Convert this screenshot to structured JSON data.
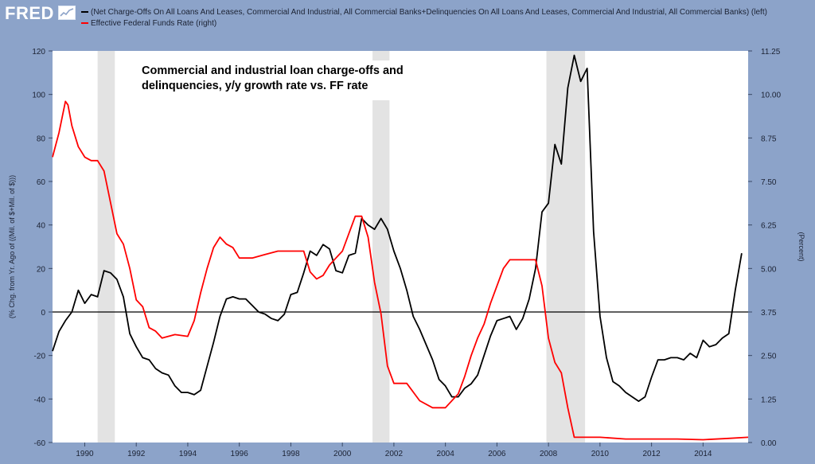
{
  "header": {
    "logo_text": "FRED",
    "logo_badge": "chart-icon",
    "legend": [
      {
        "label": "(Net Charge-Offs On All Loans And Leases, Commercial And Industrial, All Commercial Banks+Delinquencies On All Loans And Leases, Commercial And Industrial, All Commercial Banks) (left)",
        "color": "#000000"
      },
      {
        "label": "Effective Federal Funds Rate (right)",
        "color": "#ff0000"
      }
    ]
  },
  "annotation": {
    "line1": "Commercial and industrial loan charge-offs and",
    "line2": "delinquencies, y/y growth rate vs. FF rate"
  },
  "colors": {
    "background": "#8ca3c9",
    "plot_area": "#ffffff",
    "recession_band": "#e3e3e3",
    "series_left": "#000000",
    "series_right": "#ff0000"
  },
  "chart_data": {
    "type": "line",
    "title": "",
    "ylabel_left": "(% Chg. from Yr. Ago of ((Mil. of $+Mil. of $)))",
    "ylabel_right": "(Percent)",
    "xlim": [
      1988.75,
      2015.75
    ],
    "ylim_left": [
      -60,
      120
    ],
    "ylim_right": [
      0,
      11.25
    ],
    "xticks": [
      1990,
      1992,
      1994,
      1996,
      1998,
      2000,
      2002,
      2004,
      2006,
      2008,
      2010,
      2012,
      2014
    ],
    "xtick_labels": [
      "1990",
      "1992",
      "1994",
      "1996",
      "1998",
      "2000",
      "2002",
      "2004",
      "2006",
      "2008",
      "2010",
      "2012",
      "2014"
    ],
    "yticks_left": [
      -60,
      -40,
      -20,
      0,
      20,
      40,
      60,
      80,
      100,
      120
    ],
    "ytick_labels_left": [
      "-60",
      "-40",
      "-20",
      "0",
      "20",
      "40",
      "60",
      "80",
      "100",
      "120"
    ],
    "yticks_right": [
      0,
      1.25,
      2.5,
      3.75,
      5,
      6.25,
      7.5,
      8.75,
      10,
      11.25
    ],
    "ytick_labels_right": [
      "0.00",
      "1.25",
      "2.50",
      "3.75",
      "5.00",
      "6.25",
      "7.50",
      "8.75",
      "10.00",
      "11.25"
    ],
    "zero_line_left": 0,
    "recessions": [
      [
        1990.5,
        1991.17
      ],
      [
        2001.17,
        2001.83
      ],
      [
        2007.92,
        2009.42
      ]
    ],
    "series": [
      {
        "name": "(Net Charge-Offs On All Loans And Leases, Commercial And Industrial, All Commercial Banks+Delinquencies On All Loans And Leases, Commercial And Industrial, All Commercial Banks) (left)",
        "axis": "left",
        "x": [
          1988.75,
          1989.0,
          1989.25,
          1989.5,
          1989.75,
          1990.0,
          1990.25,
          1990.5,
          1990.75,
          1991.0,
          1991.25,
          1991.5,
          1991.75,
          1992.0,
          1992.25,
          1992.5,
          1992.75,
          1993.0,
          1993.25,
          1993.5,
          1993.75,
          1994.0,
          1994.25,
          1994.5,
          1994.75,
          1995.0,
          1995.25,
          1995.5,
          1995.75,
          1996.0,
          1996.25,
          1996.5,
          1996.75,
          1997.0,
          1997.25,
          1997.5,
          1997.75,
          1998.0,
          1998.25,
          1998.5,
          1998.75,
          1999.0,
          1999.25,
          1999.5,
          1999.75,
          2000.0,
          2000.25,
          2000.5,
          2000.75,
          2001.0,
          2001.25,
          2001.5,
          2001.75,
          2002.0,
          2002.25,
          2002.5,
          2002.75,
          2003.0,
          2003.25,
          2003.5,
          2003.75,
          2004.0,
          2004.25,
          2004.5,
          2004.75,
          2005.0,
          2005.25,
          2005.5,
          2005.75,
          2006.0,
          2006.25,
          2006.5,
          2006.75,
          2007.0,
          2007.25,
          2007.5,
          2007.75,
          2008.0,
          2008.25,
          2008.5,
          2008.75,
          2009.0,
          2009.25,
          2009.5,
          2009.75,
          2010.0,
          2010.25,
          2010.5,
          2010.75,
          2011.0,
          2011.25,
          2011.5,
          2011.75,
          2012.0,
          2012.25,
          2012.5,
          2012.75,
          2013.0,
          2013.25,
          2013.5,
          2013.75,
          2014.0,
          2014.25,
          2014.5,
          2014.75,
          2015.0,
          2015.25,
          2015.5
        ],
        "y": [
          -18,
          -9,
          -4,
          0,
          10,
          4,
          8,
          7,
          19,
          18,
          15,
          7,
          -10,
          -16,
          -21,
          -22,
          -26,
          -28,
          -29,
          -34,
          -37,
          -37,
          -38,
          -36,
          -25,
          -14,
          -2,
          6,
          7,
          6,
          6,
          3,
          0,
          -1,
          -3,
          -4,
          -1,
          8,
          9,
          18,
          28,
          26,
          31,
          29,
          19,
          18,
          26,
          27,
          43,
          40,
          38,
          43,
          38,
          28,
          20,
          10,
          -2,
          -8,
          -15,
          -22,
          -31,
          -34,
          -39,
          -39,
          -35,
          -33,
          -29,
          -20,
          -11,
          -4,
          -3,
          -2,
          -8,
          -3,
          6,
          20,
          46,
          50,
          77,
          68,
          103,
          118,
          106,
          112,
          37,
          -2,
          -21,
          -32,
          -34,
          -37,
          -39,
          -41,
          -39,
          -30,
          -22,
          -22,
          -21,
          -21,
          -22,
          -19,
          -21,
          -13,
          -16,
          -15,
          -12,
          -10,
          10,
          27
        ]
      },
      {
        "name": "Effective Federal Funds Rate (right)",
        "axis": "right",
        "x": [
          1988.75,
          1989.0,
          1989.25,
          1989.35,
          1989.5,
          1989.75,
          1990.0,
          1990.25,
          1990.5,
          1990.75,
          1991.0,
          1991.25,
          1991.5,
          1991.75,
          1992.0,
          1992.25,
          1992.5,
          1992.75,
          1993.0,
          1993.5,
          1994.0,
          1994.25,
          1994.5,
          1994.75,
          1995.0,
          1995.25,
          1995.5,
          1995.75,
          1996.0,
          1996.5,
          1997.0,
          1997.5,
          1998.0,
          1998.5,
          1998.75,
          1999.0,
          1999.25,
          1999.5,
          1999.75,
          2000.0,
          2000.25,
          2000.5,
          2000.75,
          2001.0,
          2001.25,
          2001.5,
          2001.75,
          2002.0,
          2002.5,
          2003.0,
          2003.5,
          2004.0,
          2004.5,
          2004.75,
          2005.0,
          2005.25,
          2005.5,
          2005.75,
          2006.0,
          2006.25,
          2006.5,
          2006.75,
          2007.0,
          2007.5,
          2007.75,
          2008.0,
          2008.25,
          2008.5,
          2008.75,
          2009.0,
          2009.5,
          2010.0,
          2011.0,
          2012.0,
          2013.0,
          2014.0,
          2015.0,
          2015.75
        ],
        "y": [
          8.2,
          8.9,
          9.8,
          9.7,
          9.1,
          8.5,
          8.2,
          8.1,
          8.1,
          7.8,
          6.9,
          6.0,
          5.7,
          5.0,
          4.1,
          3.9,
          3.3,
          3.2,
          3.0,
          3.1,
          3.05,
          3.5,
          4.3,
          5.0,
          5.6,
          5.9,
          5.7,
          5.6,
          5.3,
          5.3,
          5.4,
          5.5,
          5.5,
          5.5,
          4.9,
          4.7,
          4.8,
          5.1,
          5.3,
          5.5,
          6.0,
          6.5,
          6.5,
          5.9,
          4.6,
          3.7,
          2.2,
          1.7,
          1.7,
          1.2,
          1.0,
          1.0,
          1.4,
          1.9,
          2.5,
          3.0,
          3.4,
          4.0,
          4.5,
          5.0,
          5.25,
          5.25,
          5.25,
          5.25,
          4.5,
          3.0,
          2.3,
          2.0,
          1.0,
          0.15,
          0.15,
          0.15,
          0.1,
          0.1,
          0.1,
          0.08,
          0.12,
          0.15
        ]
      }
    ]
  }
}
